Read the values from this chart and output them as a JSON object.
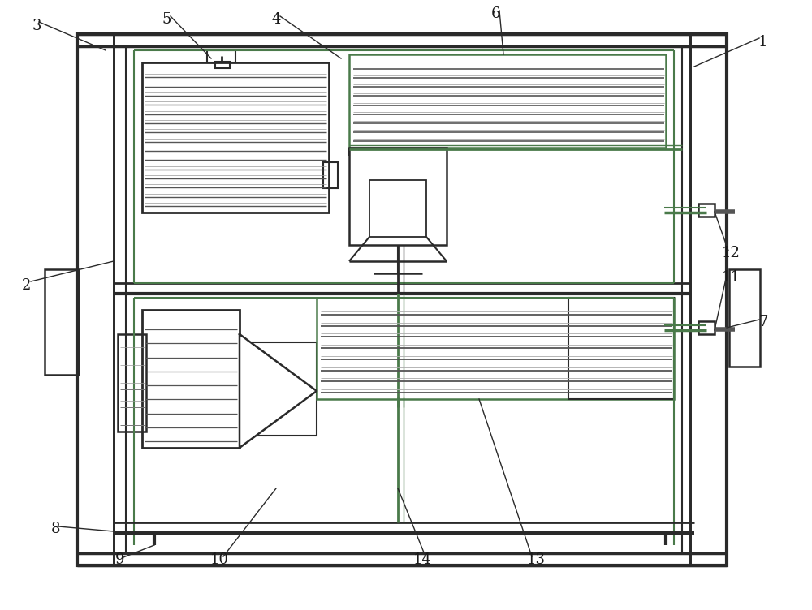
{
  "bg_color": "#ffffff",
  "lc": "#2a2a2a",
  "green": "#4a7a4a",
  "label_fontsize": 13,
  "fig_w": 10.0,
  "fig_h": 7.52
}
